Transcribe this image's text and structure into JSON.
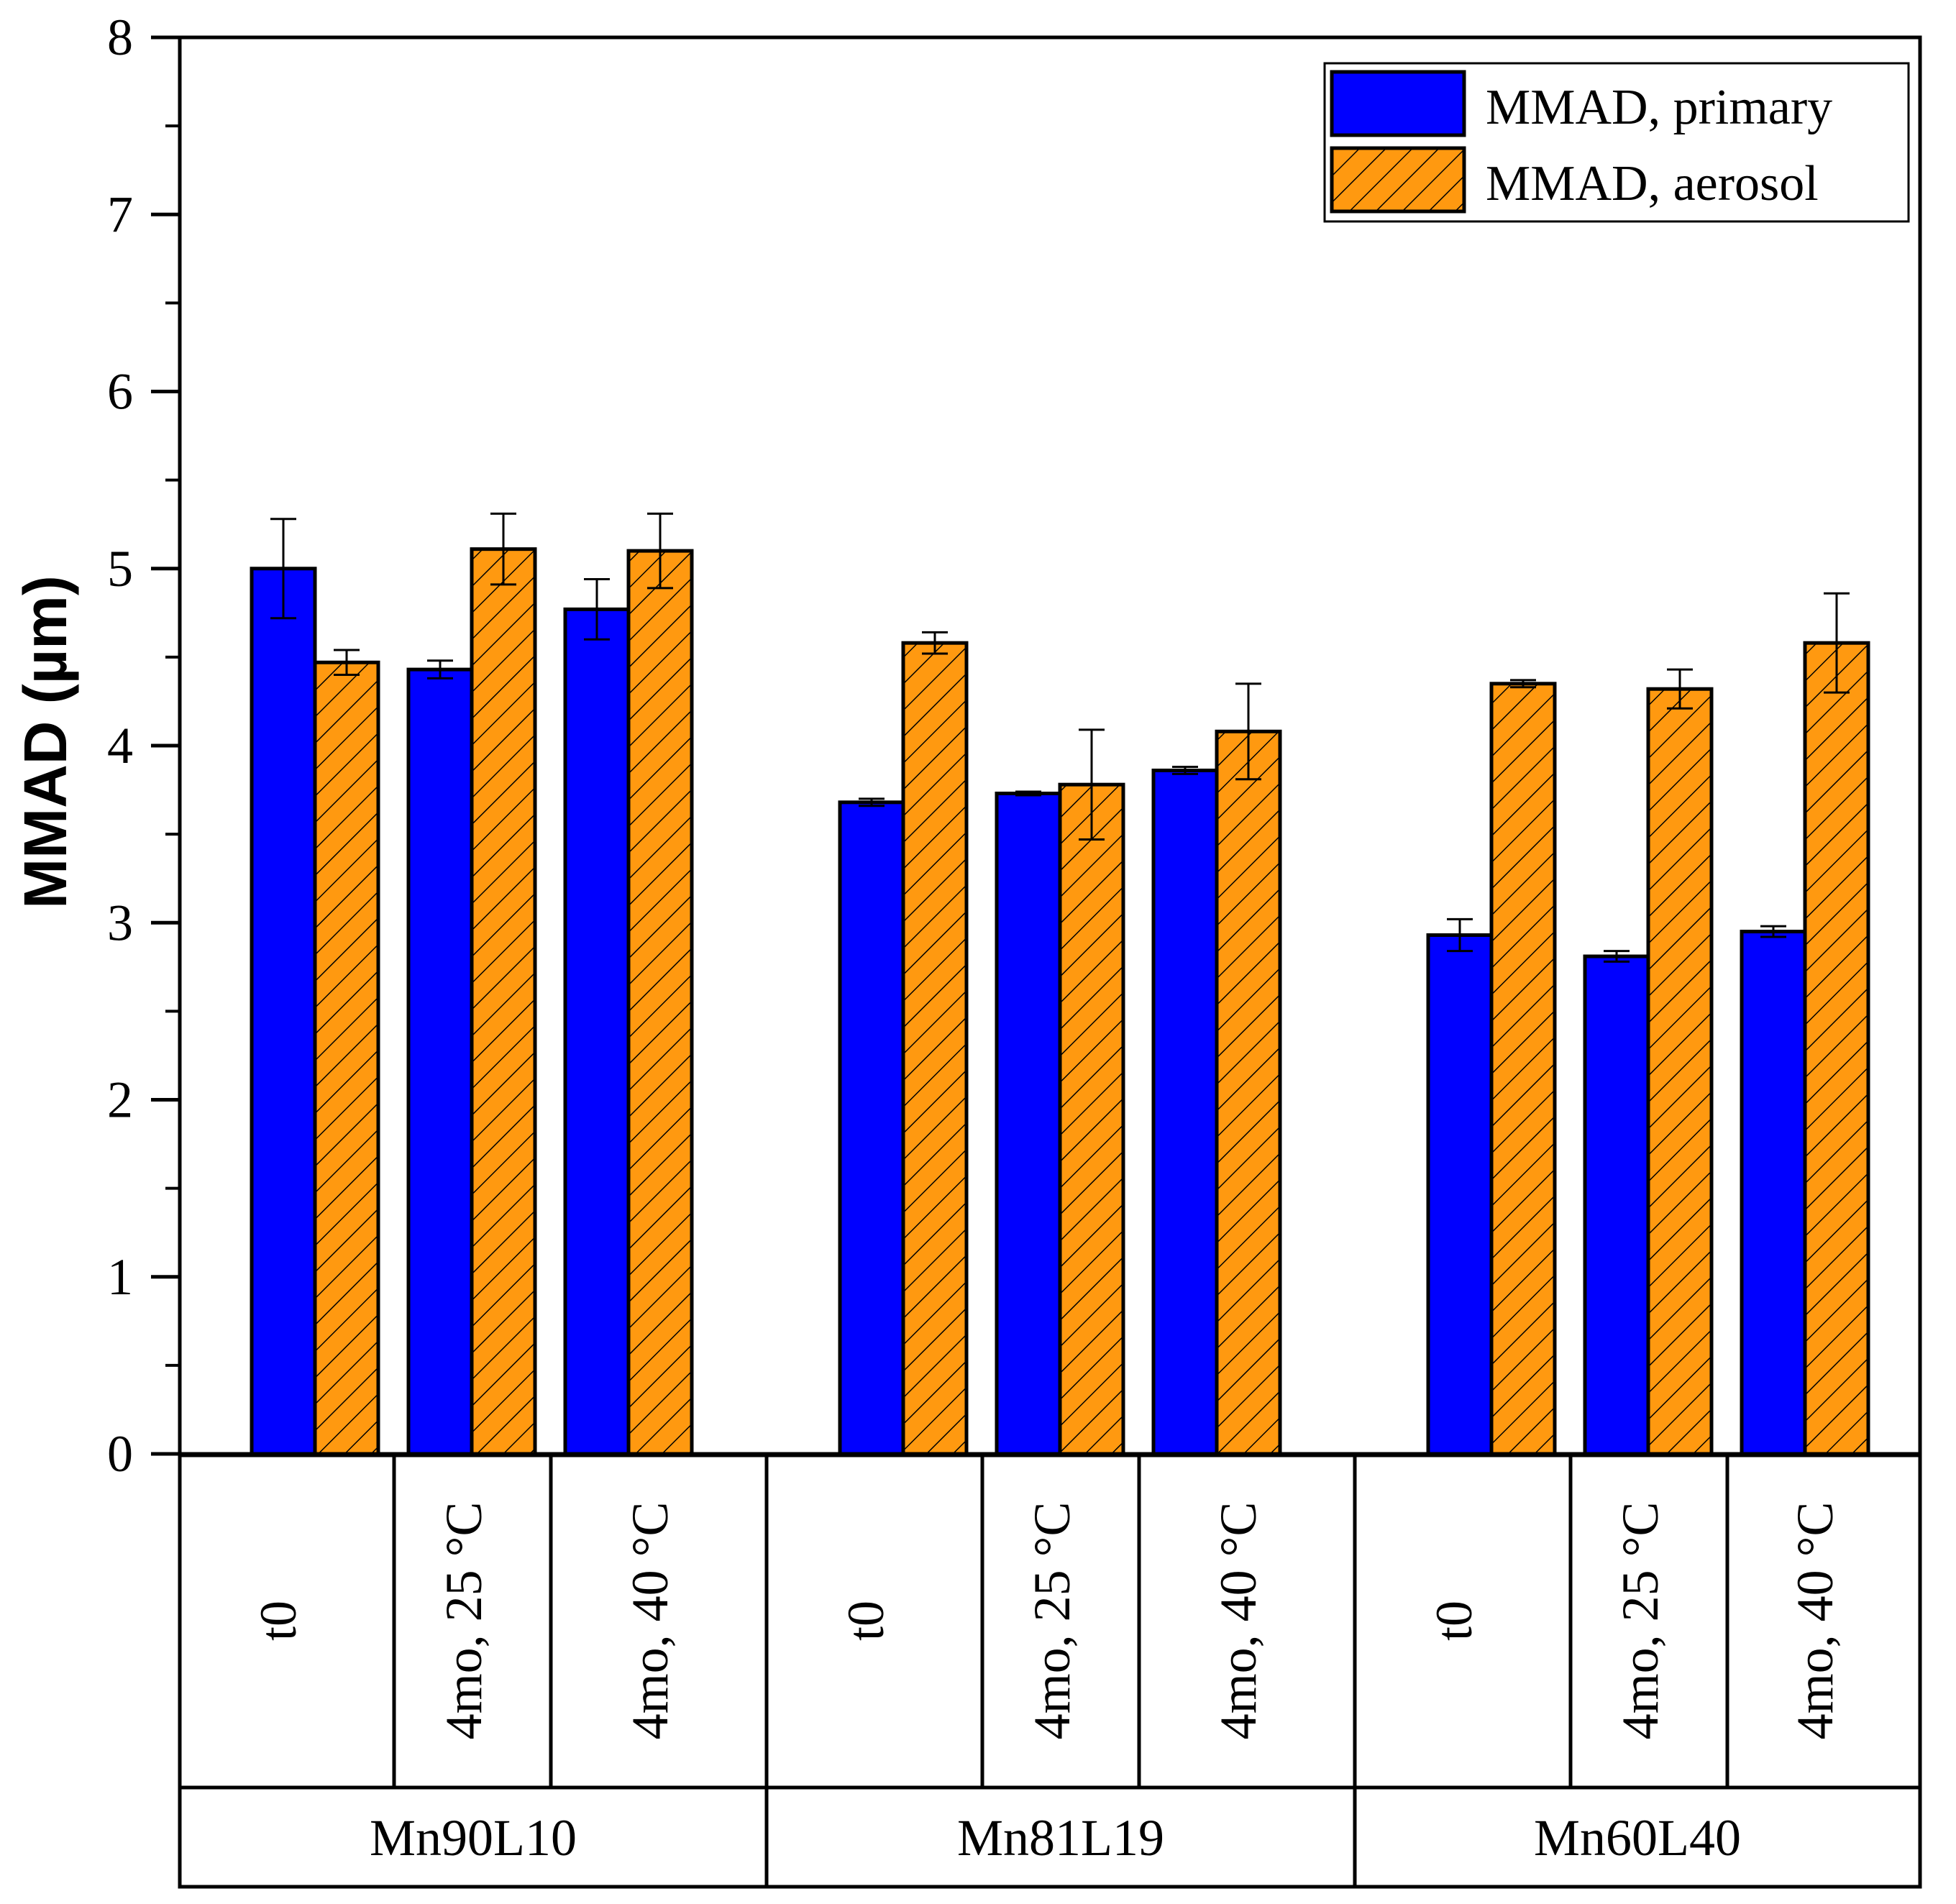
{
  "chart_data": {
    "type": "bar",
    "title": "",
    "ylabel": "MMAD (µm)",
    "xlabel": "",
    "ylim": [
      0,
      8
    ],
    "yticks": [
      "0",
      "1",
      "2",
      "3",
      "4",
      "5",
      "6",
      "7",
      "8"
    ],
    "groups": [
      {
        "name": "Mn90L10",
        "conditions": [
          "t0",
          "4mo, 25 °C",
          "4mo, 40 °C"
        ],
        "primary": [
          5.0,
          4.43,
          4.77
        ],
        "primary_err": [
          0.28,
          0.05,
          0.17
        ],
        "aerosol": [
          4.47,
          5.11,
          5.1
        ],
        "aerosol_err": [
          0.07,
          0.2,
          0.21
        ]
      },
      {
        "name": "Mn81L19",
        "conditions": [
          "t0",
          "4mo, 25 °C",
          "4mo, 40 °C"
        ],
        "primary": [
          3.68,
          3.73,
          3.86
        ],
        "primary_err": [
          0.02,
          0.01,
          0.02
        ],
        "aerosol": [
          4.58,
          3.78,
          4.08
        ],
        "aerosol_err": [
          0.06,
          0.31,
          0.27
        ]
      },
      {
        "name": "Mn60L40",
        "conditions": [
          "t0",
          "4mo, 25 °C",
          "4mo, 40 °C"
        ],
        "primary": [
          2.93,
          2.81,
          2.95
        ],
        "primary_err": [
          0.09,
          0.03,
          0.03
        ],
        "aerosol": [
          4.35,
          4.32,
          4.58
        ],
        "aerosol_err": [
          0.02,
          0.11,
          0.28
        ]
      }
    ],
    "series": [
      {
        "name": "MMAD, primary",
        "color": "#0000ff",
        "pattern": "solid"
      },
      {
        "name": "MMAD, aerosol",
        "color": "#ff9910",
        "pattern": "diagonal-hatch"
      }
    ],
    "legend": {
      "position": "top-right"
    },
    "grid": false
  }
}
